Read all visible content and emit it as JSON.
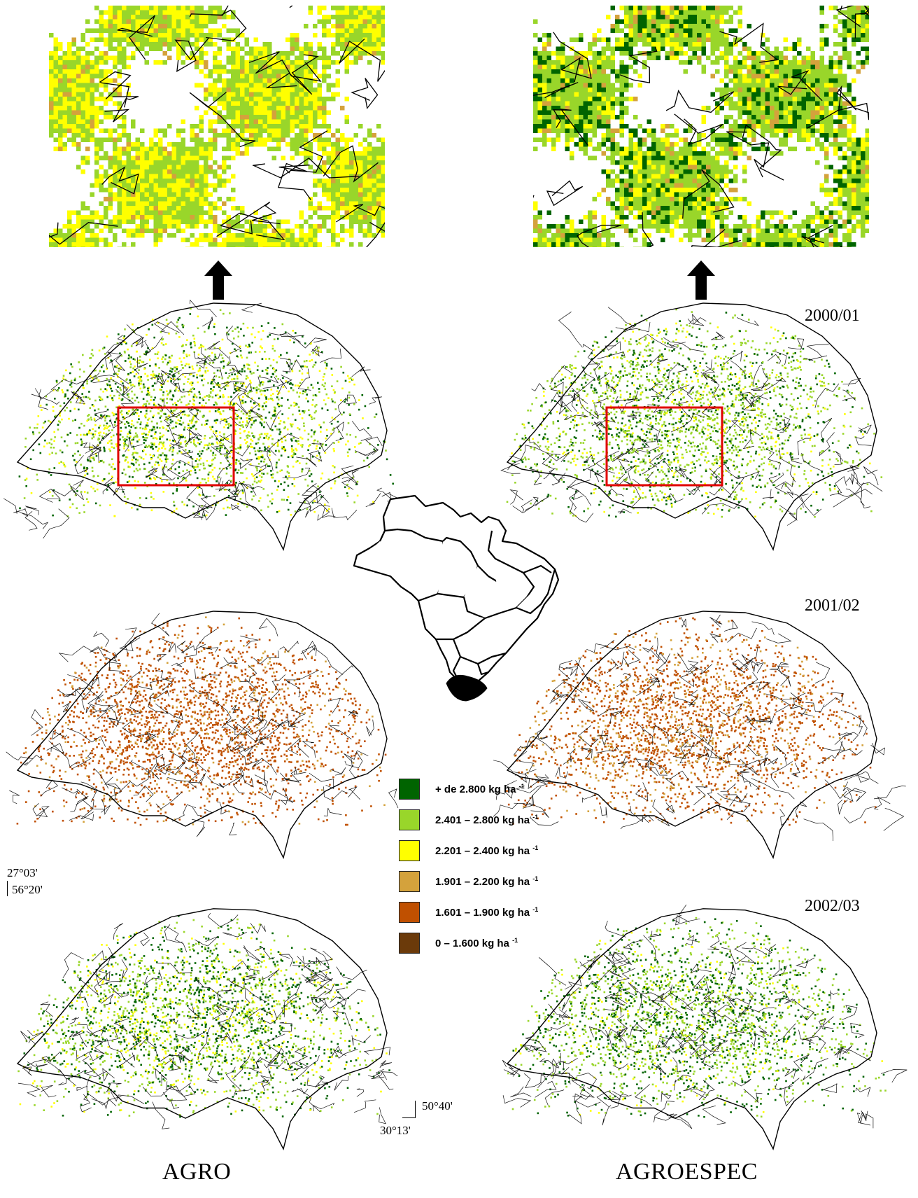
{
  "columns": {
    "left_label": "AGRO",
    "right_label": "AGROESPEC"
  },
  "years": [
    "2000/01",
    "2001/02",
    "2002/03"
  ],
  "coordinates": {
    "north_lat": "27°03'",
    "west_lon": "56°20'",
    "east_lon": "50°40'",
    "south_lat": "30°13'"
  },
  "legend": {
    "title": "",
    "items": [
      {
        "label": "+ de 2.800 kg ha",
        "exp": "-1",
        "color": "#006400"
      },
      {
        "label": "2.401 – 2.800 kg ha",
        "exp": "-1",
        "color": "#99d62a"
      },
      {
        "label": "2.201 – 2.400 kg ha",
        "exp": "-1",
        "color": "#ffff00"
      },
      {
        "label": "1.901 – 2.200 kg ha",
        "exp": "-1",
        "color": "#d4a23c"
      },
      {
        "label": "1.601 – 1.900 kg ha",
        "exp": "-1",
        "color": "#c05000"
      },
      {
        "label": "0 – 1.600 kg ha",
        "exp": "-1",
        "color": "#6b3a0a"
      }
    ]
  },
  "maps": [
    {
      "id": "agro-2000",
      "mix": {
        "dark_green": 0.3,
        "light_green": 0.4,
        "yellow": 0.3
      }
    },
    {
      "id": "agroespec-2000",
      "mix": {
        "dark_green": 0.3,
        "light_green": 0.55,
        "yellow": 0.15
      }
    },
    {
      "id": "agro-2001",
      "mix": {
        "orange": 0.85,
        "tan": 0.15
      }
    },
    {
      "id": "agroespec-2001",
      "mix": {
        "orange": 0.75,
        "tan": 0.25
      }
    },
    {
      "id": "agro-2002",
      "mix": {
        "dark_green": 0.4,
        "light_green": 0.4,
        "yellow": 0.2
      }
    },
    {
      "id": "agroespec-2002",
      "mix": {
        "dark_green": 0.4,
        "light_green": 0.5,
        "yellow": 0.1
      }
    }
  ],
  "zooms": [
    {
      "id": "agro-zoom",
      "mix": {
        "light_green": 0.55,
        "yellow": 0.4,
        "tan": 0.05
      }
    },
    {
      "id": "agroespec-zoom",
      "mix": {
        "dark_green": 0.2,
        "light_green": 0.55,
        "yellow": 0.17,
        "tan": 0.08
      }
    }
  ]
}
